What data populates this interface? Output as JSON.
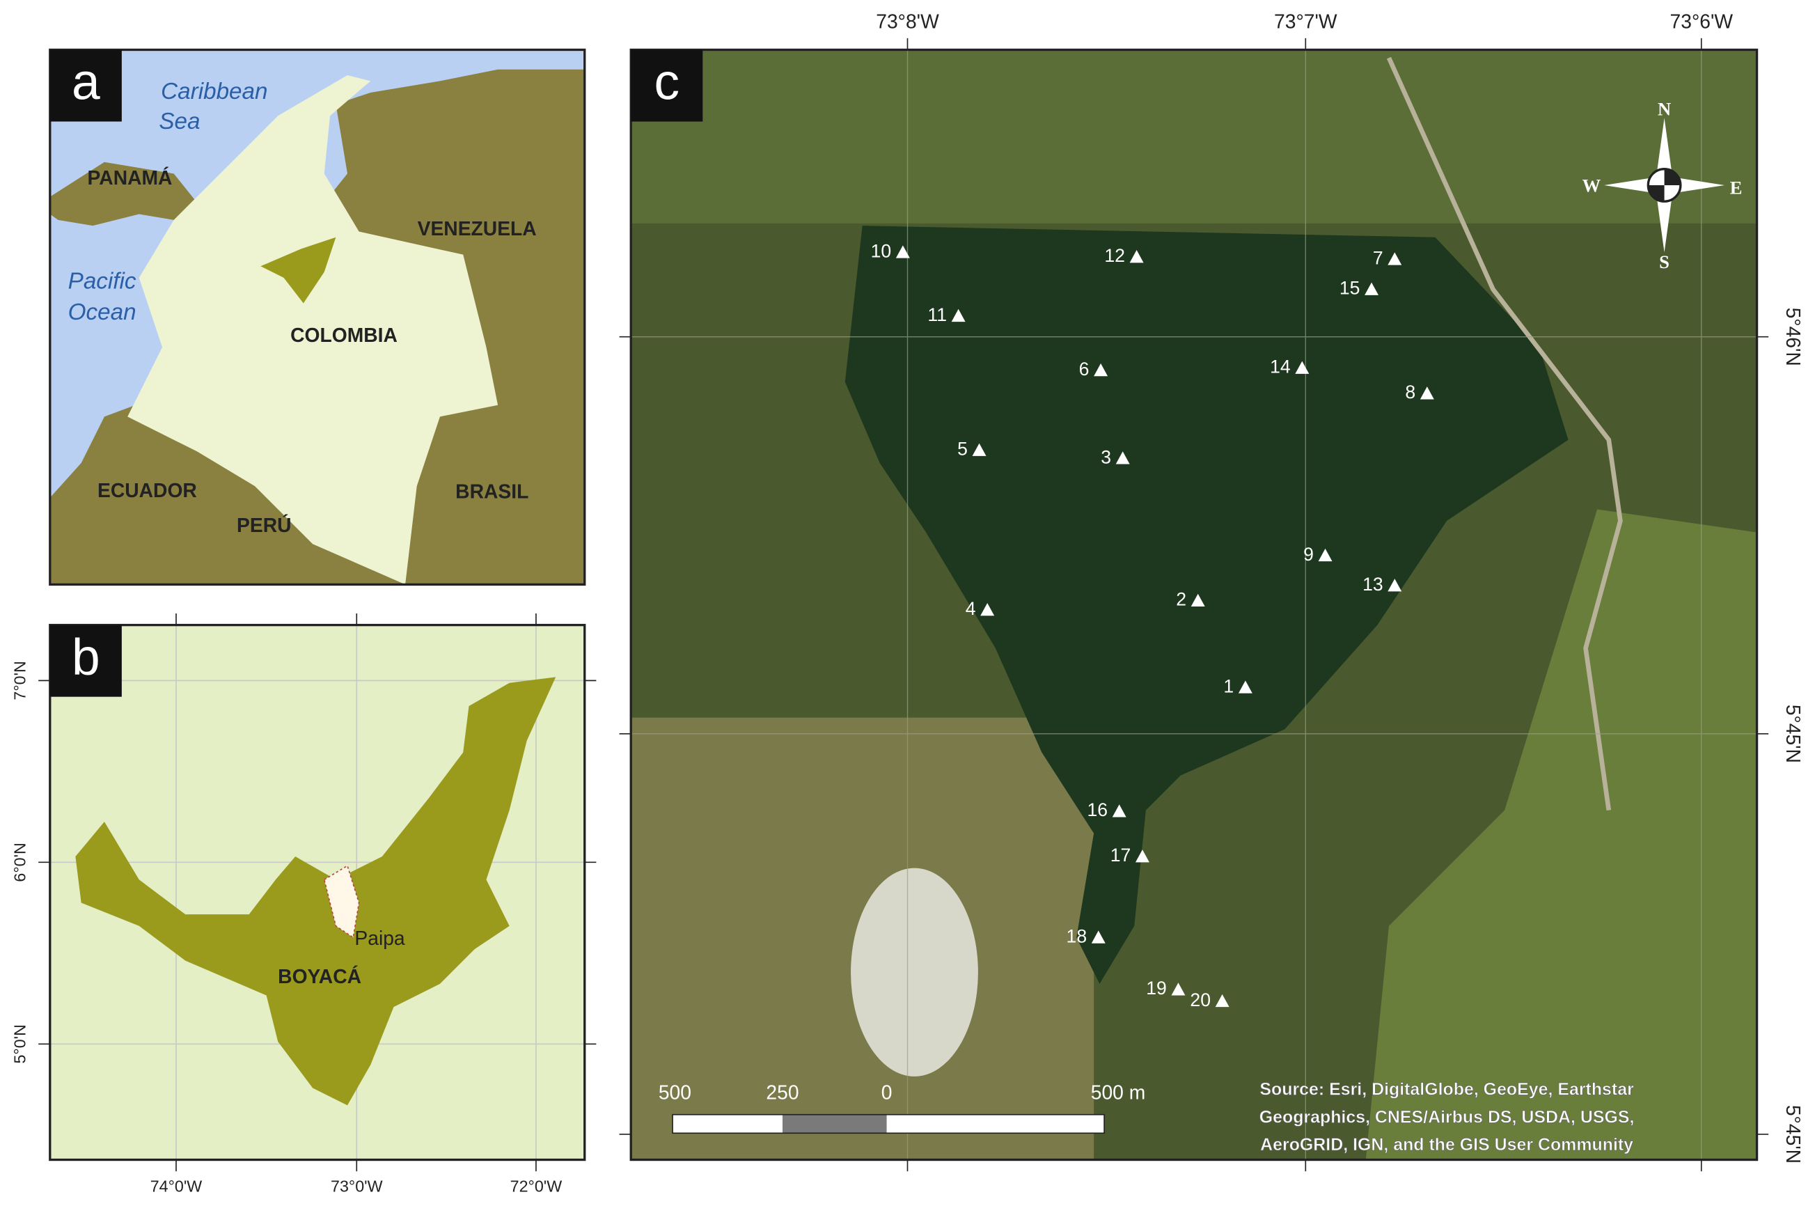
{
  "panels": {
    "a": {
      "label": "a",
      "places": [
        "Caribbean",
        "Sea",
        "PANAMÁ",
        "Pacific",
        "Ocean",
        "VENEZUELA",
        "COLOMBIA",
        "ECUADOR",
        "PERÚ",
        "BRASIL"
      ]
    },
    "b": {
      "label": "b",
      "x_ticks": [
        "74°0'W",
        "73°0'W",
        "72°0'W"
      ],
      "y_ticks": [
        "7°0'N",
        "6°0'N",
        "5°0'N"
      ],
      "places": [
        "Paipa",
        "BOYACÁ"
      ]
    },
    "c": {
      "label": "c",
      "x_ticks": [
        "73°8'W",
        "73°7'W",
        "73°6'W"
      ],
      "y_ticks": [
        "5°46'N",
        "5°45'N",
        "5°45'N"
      ],
      "sites": [
        "1",
        "2",
        "3",
        "4",
        "5",
        "6",
        "7",
        "8",
        "9",
        "10",
        "11",
        "12",
        "13",
        "14",
        "15",
        "16",
        "17",
        "18",
        "19",
        "20"
      ],
      "compass": [
        "N",
        "S",
        "W",
        "E"
      ],
      "scale_bar": [
        "500",
        "250",
        "0",
        "500 m"
      ],
      "source": [
        "Source: Esri, DigitalGlobe, GeoEye, Earthstar",
        "Geographics, CNES/Airbus DS, USDA, USGS,",
        "AeroGRID, IGN, and the GIS User Community"
      ]
    }
  }
}
